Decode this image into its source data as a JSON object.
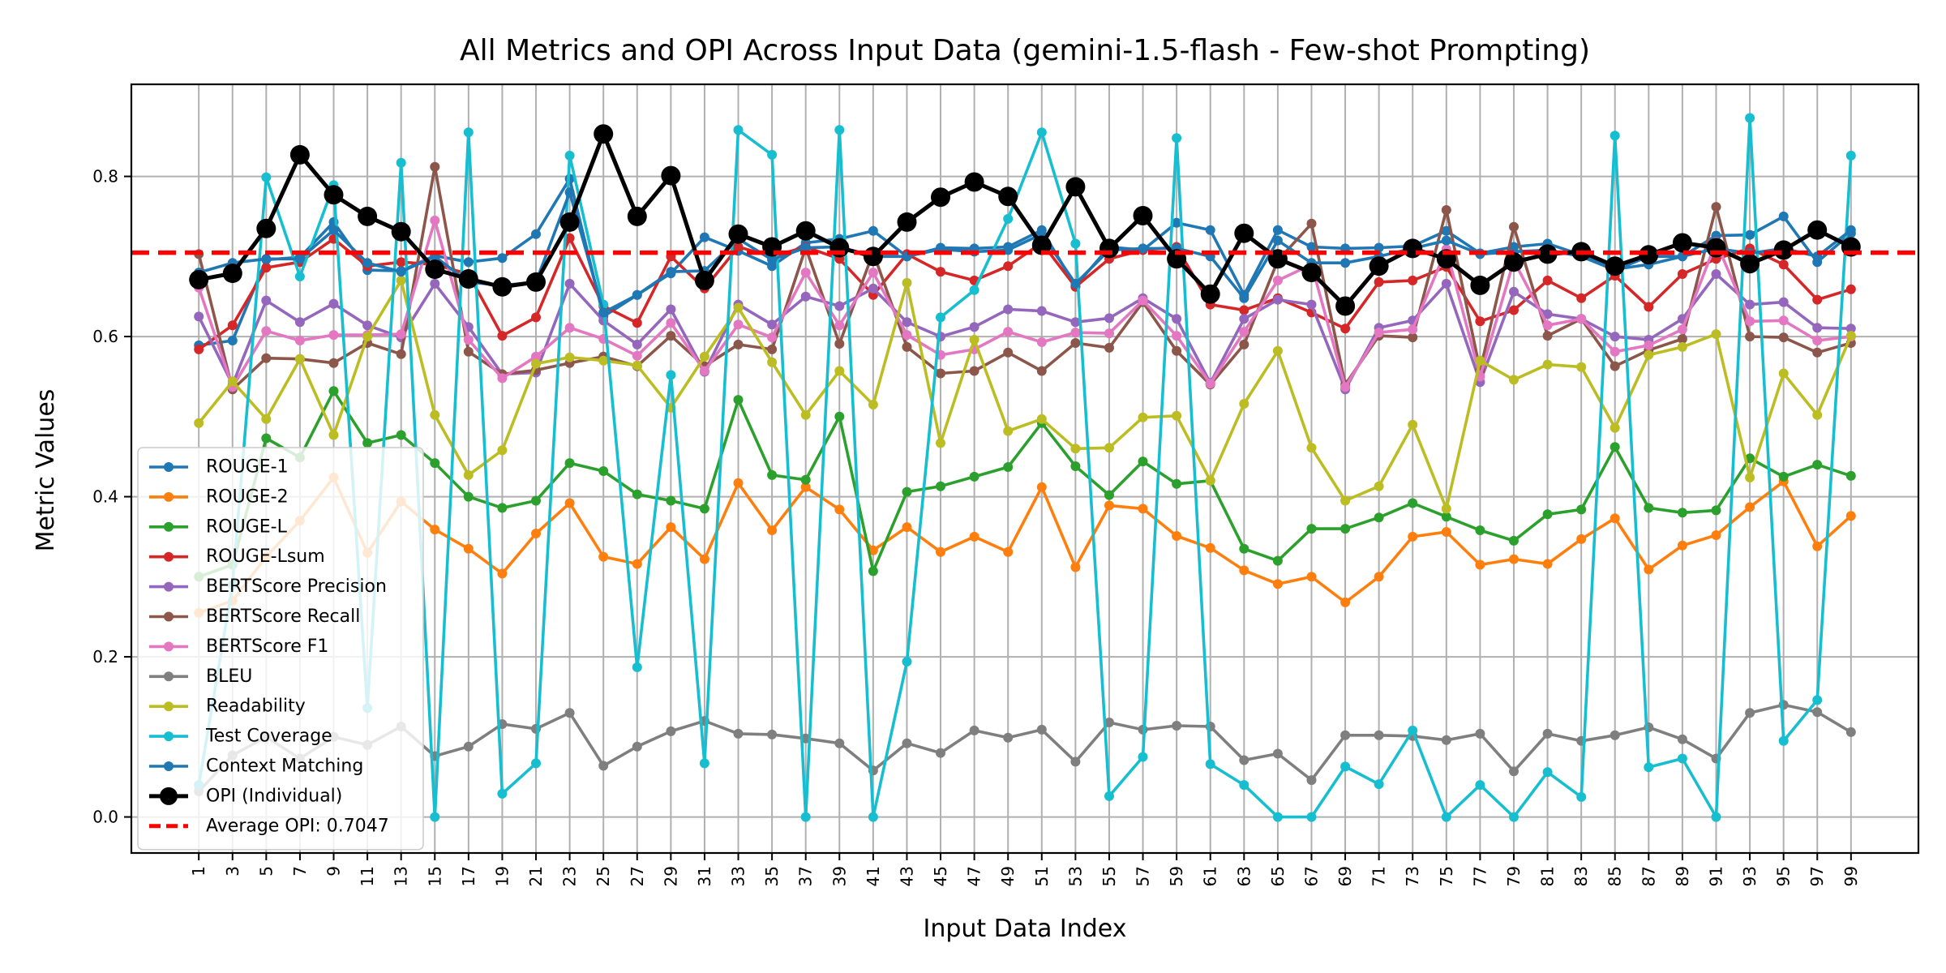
{
  "chart_data": {
    "type": "line",
    "title": "All Metrics and OPI Across Input Data (gemini-1.5-flash - Few-shot Prompting)",
    "xlabel": "Input Data Index",
    "ylabel": "Metric Values",
    "x": [
      1,
      3,
      5,
      7,
      9,
      11,
      13,
      15,
      17,
      19,
      21,
      23,
      25,
      27,
      29,
      31,
      33,
      35,
      37,
      39,
      41,
      43,
      45,
      47,
      49,
      51,
      53,
      55,
      57,
      59,
      61,
      63,
      65,
      67,
      69,
      71,
      73,
      75,
      77,
      79,
      81,
      83,
      85,
      87,
      89,
      91,
      93,
      95,
      97,
      99
    ],
    "xlim": [
      -3,
      103
    ],
    "ylim": [
      -0.045,
      0.915
    ],
    "yticks": [
      0.0,
      0.2,
      0.4,
      0.6,
      0.8
    ],
    "ytick_labels": [
      "0.0",
      "0.2",
      "0.4",
      "0.6",
      "0.8"
    ],
    "grid": true,
    "legend_position": "lower-left",
    "series": [
      {
        "name": "ROUGE-1",
        "color": "#1f77b4",
        "marker": "small",
        "values": [
          0.589,
          0.595,
          0.696,
          0.699,
          0.743,
          0.683,
          0.682,
          0.701,
          0.693,
          0.698,
          0.728,
          0.797,
          0.625,
          0.652,
          0.679,
          0.724,
          0.707,
          0.688,
          0.717,
          0.722,
          0.732,
          0.7,
          0.711,
          0.71,
          0.712,
          0.733,
          0.663,
          0.712,
          0.708,
          0.742,
          0.733,
          0.652,
          0.733,
          0.712,
          0.71,
          0.711,
          0.713,
          0.732,
          0.704,
          0.712,
          0.716,
          0.702,
          0.684,
          0.69,
          0.7,
          0.726,
          0.727,
          0.75,
          0.693,
          0.729
        ]
      },
      {
        "name": "ROUGE-2",
        "color": "#ff7f0e",
        "marker": "small",
        "values": [
          0.255,
          0.27,
          0.325,
          0.37,
          0.424,
          0.33,
          0.394,
          0.359,
          0.335,
          0.304,
          0.354,
          0.392,
          0.325,
          0.316,
          0.362,
          0.322,
          0.417,
          0.358,
          0.412,
          0.384,
          0.333,
          0.362,
          0.331,
          0.35,
          0.331,
          0.412,
          0.312,
          0.389,
          0.385,
          0.351,
          0.336,
          0.308,
          0.291,
          0.3,
          0.268,
          0.3,
          0.35,
          0.356,
          0.315,
          0.322,
          0.316,
          0.347,
          0.373,
          0.309,
          0.339,
          0.352,
          0.387,
          0.419,
          0.338,
          0.376
        ]
      },
      {
        "name": "ROUGE-L",
        "color": "#2ca02c",
        "marker": "small",
        "values": [
          0.3,
          0.315,
          0.473,
          0.449,
          0.532,
          0.467,
          0.477,
          0.442,
          0.4,
          0.386,
          0.395,
          0.442,
          0.432,
          0.403,
          0.395,
          0.385,
          0.521,
          0.427,
          0.421,
          0.5,
          0.307,
          0.406,
          0.413,
          0.425,
          0.437,
          0.492,
          0.438,
          0.402,
          0.444,
          0.416,
          0.42,
          0.335,
          0.32,
          0.36,
          0.36,
          0.374,
          0.392,
          0.375,
          0.358,
          0.345,
          0.378,
          0.384,
          0.462,
          0.386,
          0.38,
          0.383,
          0.448,
          0.425,
          0.44,
          0.426
        ]
      },
      {
        "name": "ROUGE-Lsum",
        "color": "#d62728",
        "marker": "small",
        "values": [
          0.584,
          0.614,
          0.686,
          0.693,
          0.722,
          0.688,
          0.693,
          0.69,
          0.678,
          0.601,
          0.624,
          0.723,
          0.638,
          0.617,
          0.7,
          0.66,
          0.712,
          0.7,
          0.712,
          0.697,
          0.652,
          0.703,
          0.681,
          0.67,
          0.688,
          0.717,
          0.662,
          0.697,
          0.708,
          0.712,
          0.64,
          0.633,
          0.648,
          0.63,
          0.61,
          0.668,
          0.67,
          0.687,
          0.619,
          0.633,
          0.67,
          0.648,
          0.676,
          0.637,
          0.678,
          0.697,
          0.71,
          0.69,
          0.646,
          0.659
        ]
      },
      {
        "name": "BERTScore Precision",
        "color": "#9467bd",
        "marker": "small",
        "values": [
          0.625,
          0.54,
          0.645,
          0.618,
          0.641,
          0.614,
          0.599,
          0.666,
          0.612,
          0.553,
          0.555,
          0.666,
          0.62,
          0.59,
          0.634,
          0.556,
          0.64,
          0.615,
          0.65,
          0.638,
          0.66,
          0.618,
          0.6,
          0.612,
          0.634,
          0.632,
          0.618,
          0.623,
          0.648,
          0.622,
          0.542,
          0.622,
          0.646,
          0.64,
          0.534,
          0.611,
          0.62,
          0.666,
          0.543,
          0.656,
          0.628,
          0.622,
          0.6,
          0.596,
          0.622,
          0.678,
          0.64,
          0.643,
          0.611,
          0.61
        ]
      },
      {
        "name": "BERTScore Recall",
        "color": "#8c564b",
        "marker": "small",
        "values": [
          0.703,
          0.534,
          0.573,
          0.572,
          0.567,
          0.592,
          0.578,
          0.812,
          0.581,
          0.553,
          0.558,
          0.567,
          0.575,
          0.563,
          0.601,
          0.563,
          0.59,
          0.584,
          0.711,
          0.591,
          0.705,
          0.587,
          0.554,
          0.557,
          0.58,
          0.557,
          0.592,
          0.586,
          0.643,
          0.582,
          0.54,
          0.59,
          0.695,
          0.741,
          0.54,
          0.601,
          0.599,
          0.758,
          0.558,
          0.737,
          0.601,
          0.622,
          0.563,
          0.583,
          0.597,
          0.762,
          0.6,
          0.599,
          0.58,
          0.592
        ]
      },
      {
        "name": "BERTScore F1",
        "color": "#e377c2",
        "marker": "small",
        "values": [
          0.661,
          0.537,
          0.607,
          0.595,
          0.602,
          0.602,
          0.603,
          0.745,
          0.596,
          0.548,
          0.575,
          0.611,
          0.597,
          0.576,
          0.617,
          0.557,
          0.615,
          0.599,
          0.68,
          0.614,
          0.68,
          0.602,
          0.577,
          0.584,
          0.606,
          0.593,
          0.605,
          0.604,
          0.645,
          0.601,
          0.541,
          0.606,
          0.67,
          0.69,
          0.537,
          0.605,
          0.609,
          0.709,
          0.55,
          0.695,
          0.614,
          0.622,
          0.581,
          0.589,
          0.609,
          0.718,
          0.619,
          0.62,
          0.595,
          0.6
        ]
      },
      {
        "name": "BLEU",
        "color": "#7f7f7f",
        "marker": "small",
        "values": [
          0.032,
          0.077,
          0.1,
          0.073,
          0.1,
          0.09,
          0.113,
          0.076,
          0.088,
          0.116,
          0.11,
          0.13,
          0.064,
          0.088,
          0.107,
          0.12,
          0.104,
          0.103,
          0.098,
          0.092,
          0.058,
          0.092,
          0.08,
          0.108,
          0.099,
          0.109,
          0.069,
          0.118,
          0.109,
          0.114,
          0.113,
          0.071,
          0.079,
          0.046,
          0.102,
          0.102,
          0.101,
          0.096,
          0.104,
          0.057,
          0.104,
          0.095,
          0.102,
          0.112,
          0.097,
          0.073,
          0.13,
          0.14,
          0.131,
          0.106
        ]
      },
      {
        "name": "Readability",
        "color": "#bcbd22",
        "marker": "small",
        "values": [
          0.492,
          0.544,
          0.497,
          0.572,
          0.477,
          0.6,
          0.67,
          0.502,
          0.427,
          0.458,
          0.566,
          0.574,
          0.57,
          0.564,
          0.511,
          0.575,
          0.636,
          0.568,
          0.502,
          0.557,
          0.515,
          0.667,
          0.467,
          0.596,
          0.482,
          0.497,
          0.46,
          0.461,
          0.499,
          0.501,
          0.42,
          0.516,
          0.582,
          0.461,
          0.395,
          0.413,
          0.49,
          0.385,
          0.57,
          0.546,
          0.565,
          0.562,
          0.486,
          0.577,
          0.587,
          0.603,
          0.424,
          0.554,
          0.502,
          0.601
        ]
      },
      {
        "name": "Test Coverage",
        "color": "#17becf",
        "marker": "small",
        "values": [
          0.04,
          0.29,
          0.799,
          0.675,
          0.789,
          0.136,
          0.817,
          0.0,
          0.855,
          0.029,
          0.067,
          0.826,
          0.64,
          0.187,
          0.552,
          0.067,
          0.858,
          0.827,
          0.0,
          0.858,
          0.0,
          0.194,
          0.624,
          0.658,
          0.747,
          0.855,
          0.716,
          0.026,
          0.075,
          0.848,
          0.066,
          0.04,
          0.0,
          0.0,
          0.063,
          0.041,
          0.108,
          0.0,
          0.04,
          0.0,
          0.056,
          0.025,
          0.851,
          0.062,
          0.073,
          0.0,
          0.873,
          0.095,
          0.146,
          0.826
        ]
      },
      {
        "name": "Context Matching",
        "color": "#1f77b4",
        "marker": "small",
        "values": [
          0.68,
          0.692,
          0.697,
          0.697,
          0.733,
          0.692,
          0.681,
          0.7,
          0.668,
          0.664,
          0.668,
          0.78,
          0.63,
          0.652,
          0.681,
          0.682,
          0.722,
          0.696,
          0.711,
          0.712,
          0.7,
          0.7,
          0.709,
          0.706,
          0.708,
          0.728,
          0.666,
          0.708,
          0.71,
          0.71,
          0.7,
          0.648,
          0.72,
          0.692,
          0.692,
          0.7,
          0.71,
          0.72,
          0.703,
          0.706,
          0.708,
          0.7,
          0.683,
          0.7,
          0.7,
          0.71,
          0.704,
          0.71,
          0.7,
          0.733
        ]
      },
      {
        "name": "OPI (Individual)",
        "color": "#000000",
        "marker": "large",
        "values": [
          0.671,
          0.679,
          0.735,
          0.827,
          0.777,
          0.75,
          0.731,
          0.684,
          0.672,
          0.662,
          0.668,
          0.743,
          0.853,
          0.75,
          0.801,
          0.67,
          0.728,
          0.712,
          0.732,
          0.711,
          0.7,
          0.743,
          0.774,
          0.793,
          0.775,
          0.714,
          0.787,
          0.71,
          0.751,
          0.697,
          0.653,
          0.729,
          0.697,
          0.68,
          0.638,
          0.688,
          0.71,
          0.697,
          0.664,
          0.693,
          0.703,
          0.706,
          0.688,
          0.702,
          0.717,
          0.711,
          0.691,
          0.708,
          0.733,
          0.712
        ]
      }
    ],
    "reference_lines": [
      {
        "name": "Average OPI: 0.7047",
        "value": 0.7047,
        "color": "#ff0000",
        "style": "dashed"
      }
    ]
  }
}
